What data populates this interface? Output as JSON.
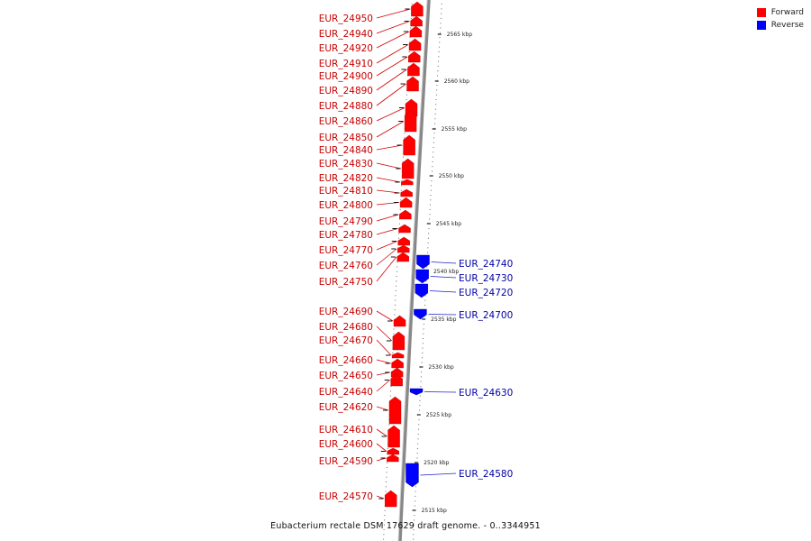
{
  "colors": {
    "forward": "#ff0000",
    "reverse": "#0000ff",
    "forward_label": "#c80000",
    "reverse_label": "#0000aa",
    "backbone": "#888888"
  },
  "legend": {
    "forward": "Forward",
    "reverse": "Reverse"
  },
  "caption": "Eubacterium rectale DSM 17629 draft genome. - 0..3344951",
  "ticks": [
    "2565 kbp",
    "2560 kbp",
    "2555 kbp",
    "2550 kbp",
    "2545 kbp",
    "2540 kbp",
    "2535 kbp",
    "2530 kbp",
    "2525 kbp",
    "2520 kbp",
    "2515 kbp"
  ],
  "forward_genes": [
    "EUR_24950",
    "EUR_24940",
    "EUR_24920",
    "EUR_24910",
    "EUR_24900",
    "EUR_24890",
    "EUR_24880",
    "EUR_24860",
    "EUR_24850",
    "EUR_24840",
    "EUR_24830",
    "EUR_24820",
    "EUR_24810",
    "EUR_24800",
    "EUR_24790",
    "EUR_24780",
    "EUR_24770",
    "EUR_24760",
    "EUR_24750",
    "EUR_24690",
    "EUR_24680",
    "EUR_24670",
    "EUR_24660",
    "EUR_24650",
    "EUR_24640",
    "EUR_24620",
    "EUR_24610",
    "EUR_24600",
    "EUR_24590",
    "EUR_24570"
  ],
  "reverse_genes": [
    "EUR_24740",
    "EUR_24730",
    "EUR_24720",
    "EUR_24700",
    "EUR_24630",
    "EUR_24580"
  ]
}
